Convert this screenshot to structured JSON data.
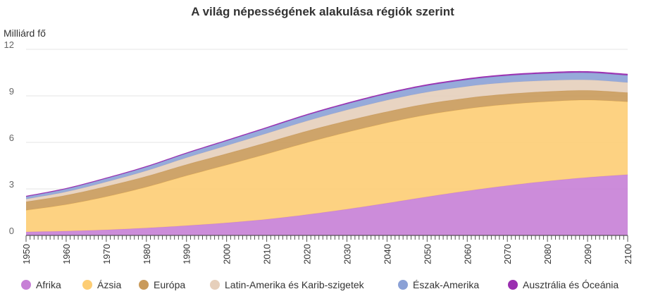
{
  "chart_data": {
    "type": "area",
    "stacked": true,
    "title": "A világ népességének alakulása régiók szerint",
    "ylabel": "Milliárd fő",
    "xlabel": "",
    "ylim": [
      0,
      12
    ],
    "yticks": [
      0,
      3,
      6,
      9,
      12
    ],
    "xlim": [
      1950,
      2100
    ],
    "xticks": [
      1950,
      1960,
      1970,
      1980,
      1990,
      2000,
      2010,
      2020,
      2030,
      2040,
      2050,
      2060,
      2070,
      2080,
      2090,
      2100
    ],
    "grid": true,
    "legend_position": "bottom",
    "x": [
      1950,
      1960,
      1970,
      1980,
      1990,
      2000,
      2010,
      2020,
      2030,
      2040,
      2050,
      2060,
      2070,
      2080,
      2090,
      2100
    ],
    "series": [
      {
        "name": "Afrika",
        "color": "#c77fd6",
        "values": [
          0.23,
          0.28,
          0.36,
          0.48,
          0.63,
          0.81,
          1.04,
          1.34,
          1.69,
          2.08,
          2.49,
          2.87,
          3.21,
          3.5,
          3.74,
          3.92
        ]
      },
      {
        "name": "Ázsia",
        "color": "#fdcd74",
        "values": [
          1.39,
          1.71,
          2.14,
          2.64,
          3.22,
          3.73,
          4.21,
          4.64,
          4.96,
          5.18,
          5.29,
          5.3,
          5.24,
          5.13,
          4.99,
          4.7
        ]
      },
      {
        "name": "Európa",
        "color": "#c99a5a",
        "values": [
          0.55,
          0.6,
          0.66,
          0.69,
          0.72,
          0.73,
          0.74,
          0.75,
          0.74,
          0.72,
          0.71,
          0.69,
          0.67,
          0.65,
          0.62,
          0.59
        ]
      },
      {
        "name": "Latin-Amerika és Karib-szigetek",
        "color": "#e6cfbb",
        "values": [
          0.17,
          0.22,
          0.29,
          0.36,
          0.44,
          0.52,
          0.59,
          0.65,
          0.7,
          0.74,
          0.75,
          0.75,
          0.74,
          0.71,
          0.68,
          0.65
        ]
      },
      {
        "name": "Észak-Amerika",
        "color": "#8ba1d6",
        "values": [
          0.17,
          0.2,
          0.23,
          0.25,
          0.28,
          0.31,
          0.34,
          0.37,
          0.39,
          0.41,
          0.42,
          0.43,
          0.44,
          0.45,
          0.46,
          0.46
        ]
      },
      {
        "name": "Ausztrália és Óceánia",
        "color": "#9a2fb0",
        "values": [
          0.013,
          0.016,
          0.02,
          0.023,
          0.027,
          0.031,
          0.037,
          0.043,
          0.048,
          0.053,
          0.058,
          0.062,
          0.066,
          0.069,
          0.072,
          0.075
        ]
      }
    ]
  }
}
